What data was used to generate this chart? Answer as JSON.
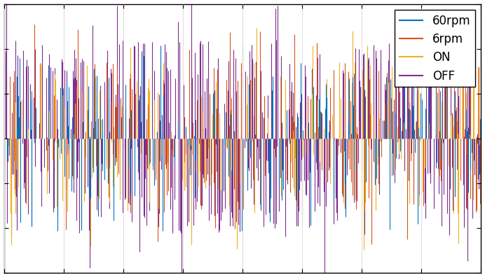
{
  "title": "",
  "xlabel": "",
  "ylabel": "",
  "legend_labels": [
    "60rpm",
    "6rpm",
    "ON",
    "OFF"
  ],
  "line_colors": [
    "#0072BD",
    "#D95319",
    "#EDB120",
    "#7E2F8E"
  ],
  "background_color": "#ffffff",
  "figsize": [
    6.92,
    3.96
  ],
  "dpi": 100,
  "n_total": 2000,
  "ylim": [
    -1.5,
    1.5
  ],
  "xlim": [
    0,
    2000
  ],
  "legend_fontsize": 12,
  "grid_color": "#e0e0e0",
  "spine_color": "#000000",
  "amplitudes": [
    0.7,
    0.85,
    0.85,
    1.1
  ],
  "spike_probs": [
    0.08,
    0.1,
    0.1,
    0.25
  ],
  "seeds": [
    101,
    202,
    303,
    404
  ]
}
